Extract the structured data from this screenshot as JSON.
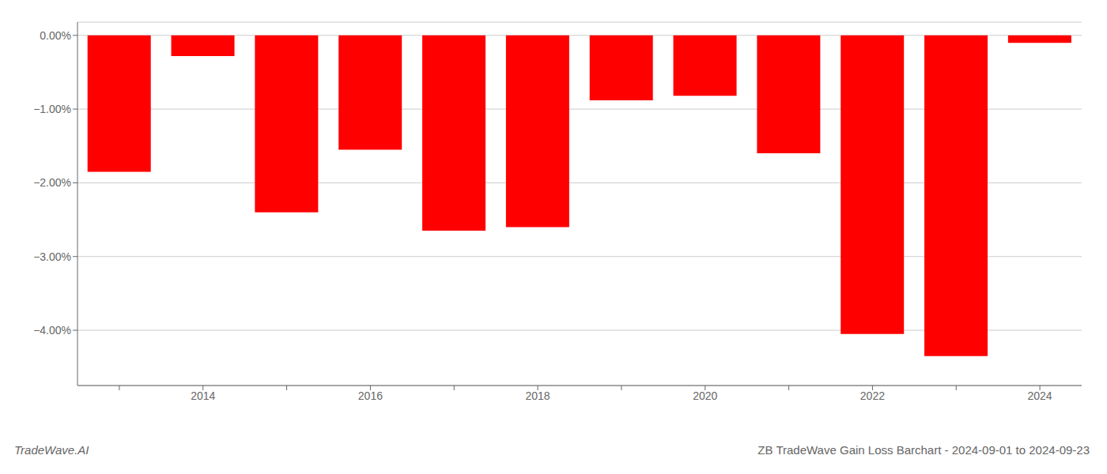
{
  "chart_data": {
    "type": "bar",
    "title": "ZB TradeWave Gain Loss Barchart - 2024-09-01 to 2024-09-23",
    "annotations": [
      "TradeWave.AI"
    ],
    "categories": [
      null,
      "2014",
      null,
      "2016",
      null,
      "2018",
      null,
      "2020",
      null,
      "2022",
      null,
      "2024"
    ],
    "values": [
      -1.85,
      -0.28,
      -2.4,
      -1.55,
      -2.65,
      -2.6,
      -0.88,
      -0.82,
      -1.6,
      -4.05,
      -4.35,
      -0.1
    ],
    "color": "#ff0000",
    "ylim": [
      -4.75,
      0.18
    ],
    "yticks": [
      {
        "value": 0.0,
        "label": "0.00%"
      },
      {
        "value": -1.0,
        "label": "−1.00%"
      },
      {
        "value": -2.0,
        "label": "−2.00%"
      },
      {
        "value": -3.0,
        "label": "−3.00%"
      },
      {
        "value": -4.0,
        "label": "−4.00%"
      }
    ],
    "grid": true
  }
}
